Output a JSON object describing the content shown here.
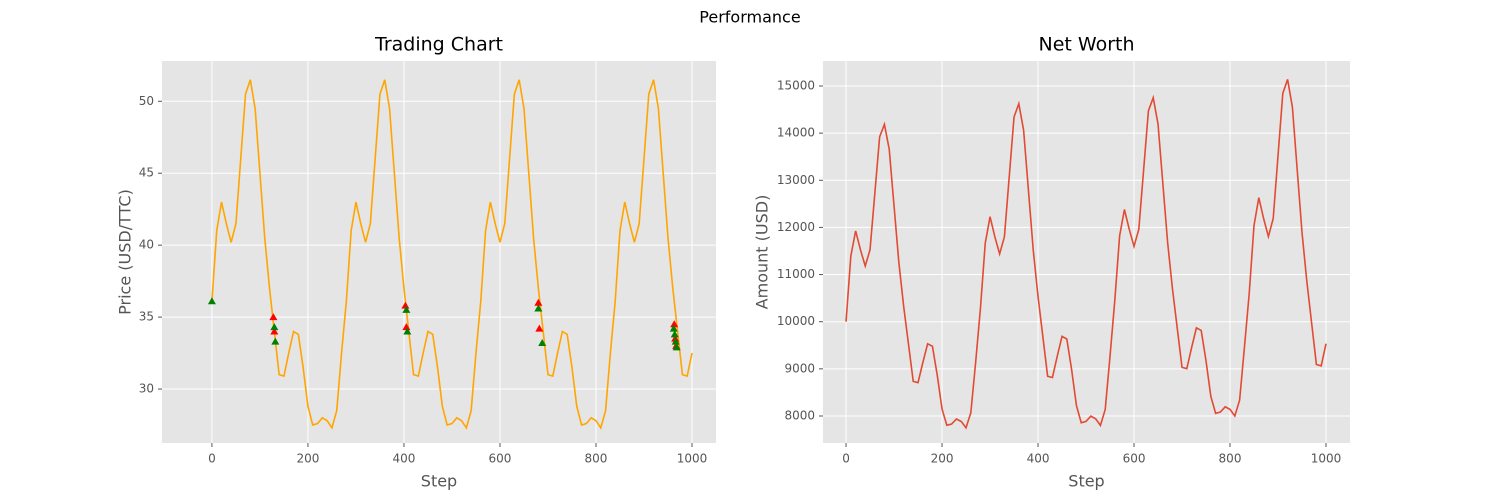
{
  "title": "Performance",
  "chart_data": [
    {
      "type": "line",
      "title": "Trading Chart",
      "xlabel": "Step",
      "ylabel": "Price (USD/TTC)",
      "x": [
        0,
        10,
        20,
        30,
        40,
        50,
        60,
        70,
        80,
        90,
        100,
        110,
        120,
        130,
        140,
        150,
        160,
        170,
        180,
        190,
        200,
        210,
        220,
        230,
        240,
        250,
        260,
        270,
        280,
        290,
        300,
        310,
        320,
        330,
        340,
        350,
        360,
        370,
        380,
        390,
        400,
        410,
        420,
        430,
        440,
        450,
        460,
        470,
        480,
        490,
        500,
        510,
        520,
        530,
        540,
        550,
        560,
        570,
        580,
        590,
        600,
        610,
        620,
        630,
        640,
        650,
        660,
        670,
        680,
        690,
        700,
        710,
        720,
        730,
        740,
        750,
        760,
        770,
        780,
        790,
        800,
        810,
        820,
        830,
        840,
        850,
        860,
        870,
        880,
        890,
        900,
        910,
        920,
        930,
        940,
        950,
        960,
        970,
        980,
        990,
        1000
      ],
      "series": [
        {
          "color": "#ffa500",
          "values": [
            36.1,
            41.0,
            43.0,
            41.5,
            40.2,
            41.5,
            46.0,
            50.5,
            51.5,
            49.5,
            45.0,
            40.5,
            37.0,
            34.0,
            31.0,
            30.9,
            32.5,
            34.0,
            33.8,
            31.5,
            28.8,
            27.5,
            27.6,
            28.0,
            27.8,
            27.3,
            28.5,
            32.5,
            36.1,
            41.0,
            43.0,
            41.5,
            40.2,
            41.5,
            46.0,
            50.5,
            51.5,
            49.5,
            45.0,
            40.5,
            37.0,
            34.0,
            31.0,
            30.9,
            32.5,
            34.0,
            33.8,
            31.5,
            28.8,
            27.5,
            27.6,
            28.0,
            27.8,
            27.3,
            28.5,
            32.5,
            36.1,
            41.0,
            43.0,
            41.5,
            40.2,
            41.5,
            46.0,
            50.5,
            51.5,
            49.5,
            45.0,
            40.5,
            37.0,
            34.0,
            31.0,
            30.9,
            32.5,
            34.0,
            33.8,
            31.5,
            28.8,
            27.5,
            27.6,
            28.0,
            27.8,
            27.3,
            28.5,
            32.5,
            36.1,
            41.0,
            43.0,
            41.5,
            40.2,
            41.5,
            46.0,
            50.5,
            51.5,
            49.5,
            45.0,
            40.5,
            37.0,
            34.0,
            31.0,
            30.9,
            32.5
          ]
        }
      ],
      "markers": [
        {
          "color": "#ff0000",
          "x": [
            128,
            130,
            403,
            405,
            680,
            682,
            963,
            965,
            967
          ],
          "y": [
            35.0,
            34.0,
            35.8,
            34.3,
            36.0,
            34.2,
            34.5,
            33.5,
            33.0
          ]
        },
        {
          "color": "#008000",
          "x": [
            0,
            130,
            132,
            405,
            407,
            680,
            688,
            962,
            964,
            966,
            968
          ],
          "y": [
            36.1,
            34.3,
            33.3,
            35.5,
            34.0,
            35.6,
            33.2,
            34.2,
            33.8,
            33.3,
            32.9
          ]
        }
      ],
      "xlim": [
        -104,
        1050
      ],
      "xticks": [
        0,
        200,
        400,
        600,
        800,
        1000
      ],
      "ylim": [
        26.25,
        52.8
      ],
      "yticks": [
        30,
        35,
        40,
        45,
        50
      ],
      "grid": true
    },
    {
      "type": "line",
      "title": "Net Worth",
      "xlabel": "Step",
      "ylabel": "Amount (USD)",
      "x": [
        0,
        10,
        20,
        30,
        40,
        50,
        60,
        70,
        80,
        90,
        100,
        110,
        120,
        130,
        140,
        150,
        160,
        170,
        180,
        190,
        200,
        210,
        220,
        230,
        240,
        250,
        260,
        270,
        280,
        290,
        300,
        310,
        320,
        330,
        340,
        350,
        360,
        370,
        380,
        390,
        400,
        410,
        420,
        430,
        440,
        450,
        460,
        470,
        480,
        490,
        500,
        510,
        520,
        530,
        540,
        550,
        560,
        570,
        580,
        590,
        600,
        610,
        620,
        630,
        640,
        650,
        660,
        670,
        680,
        690,
        700,
        710,
        720,
        730,
        740,
        750,
        760,
        770,
        780,
        790,
        800,
        810,
        820,
        830,
        840,
        850,
        860,
        870,
        880,
        890,
        900,
        910,
        920,
        930,
        940,
        950,
        960,
        970,
        980,
        990,
        1000
      ],
      "series": [
        {
          "color": "#e24a33",
          "values": [
            10000,
            11394,
            11926,
            11527,
            11181,
            11527,
            12724,
            13921,
            14187,
            13655,
            12458,
            11261,
            10330,
            9532,
            8734,
            8708,
            9133,
            9532,
            9479,
            8867,
            8149,
            7803,
            7830,
            7936,
            7883,
            7750,
            8069,
            9133,
            10282,
            11663,
            12227,
            11804,
            11438,
            11804,
            13073,
            14342,
            14624,
            14060,
            12791,
            11522,
            10535,
            9689,
            8843,
            8815,
            9266,
            9689,
            9633,
            8984,
            8223,
            7856,
            7885,
            7997,
            7941,
            7800,
            8138,
            9266,
            10455,
            11822,
            12380,
            11962,
            11599,
            11962,
            13217,
            14473,
            14752,
            14194,
            12938,
            11683,
            10706,
            9869,
            9032,
            9004,
            9451,
            9869,
            9814,
            9172,
            8419,
            8056,
            8084,
            8195,
            8140,
            8000,
            8335,
            9451,
            10596,
            12042,
            12632,
            12189,
            11806,
            12189,
            13517,
            14844,
            15139,
            14549,
            13222,
            11894,
            10862,
            9977,
            9092,
            9062,
            9534
          ]
        }
      ],
      "xlim": [
        -48,
        1050
      ],
      "xticks": [
        0,
        200,
        400,
        600,
        800,
        1000
      ],
      "ylim": [
        7427,
        15530
      ],
      "yticks": [
        8000,
        9000,
        10000,
        11000,
        12000,
        13000,
        14000,
        15000
      ],
      "grid": true
    }
  ]
}
